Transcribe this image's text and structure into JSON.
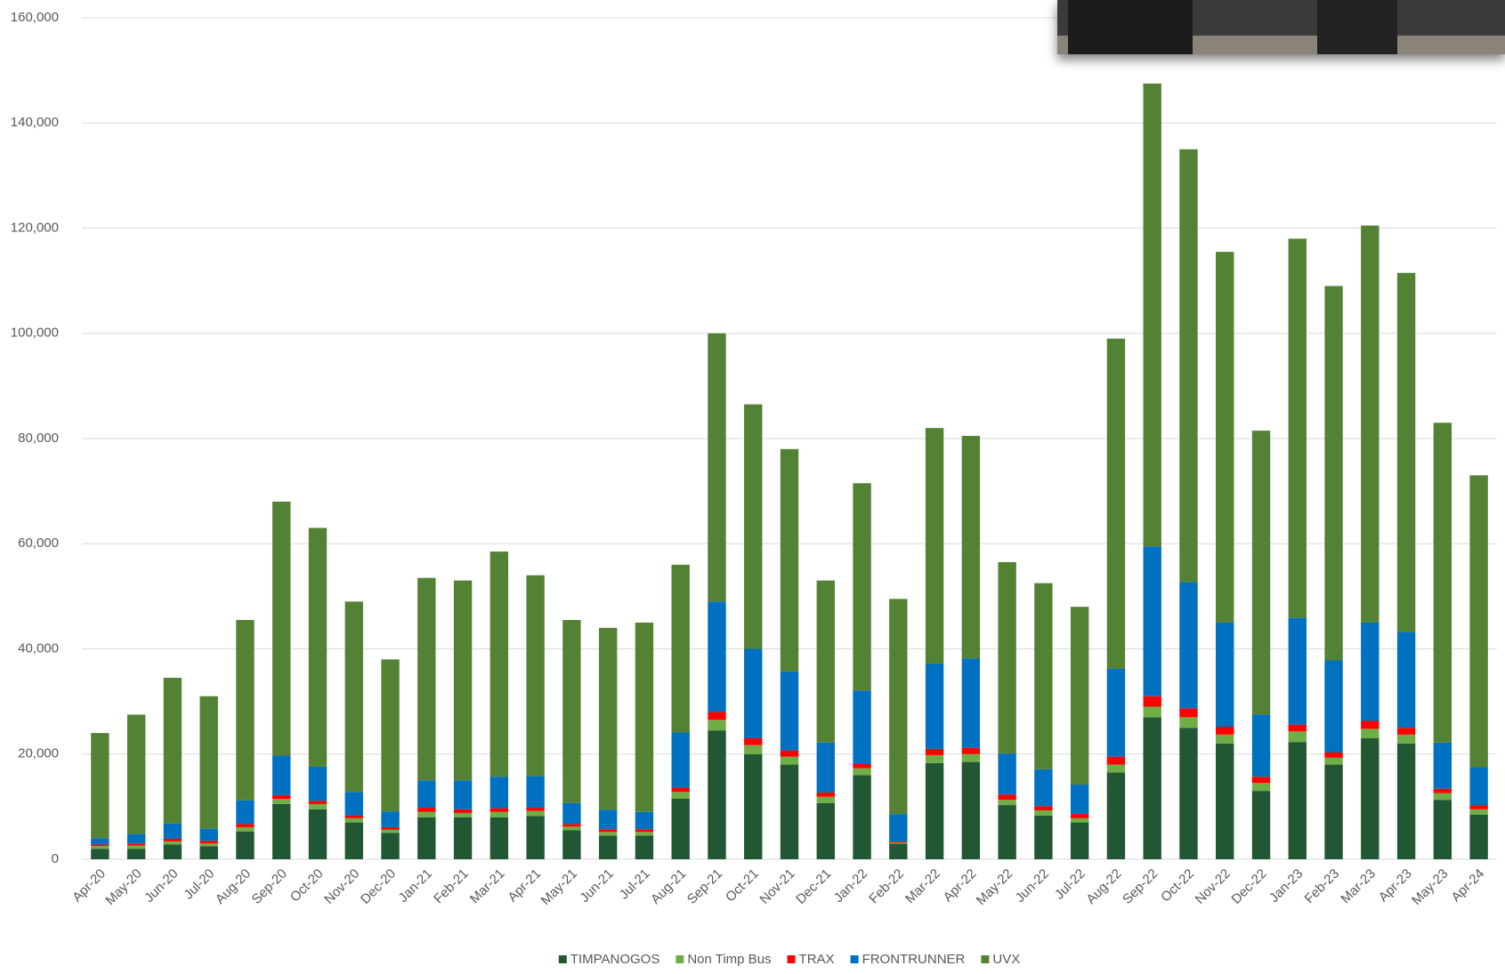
{
  "chart_data": {
    "type": "stacked_bar",
    "categories": [
      "Apr-20",
      "May-20",
      "Jun-20",
      "Jul-20",
      "Aug-20",
      "Sep-20",
      "Oct-20",
      "Nov-20",
      "Dec-20",
      "Jan-21",
      "Feb-21",
      "Mar-21",
      "Apr-21",
      "May-21",
      "Jun-21",
      "Jul-21",
      "Aug-21",
      "Sep-21",
      "Oct-21",
      "Nov-21",
      "Dec-21",
      "Jan-22",
      "Feb-22",
      "Mar-22",
      "Apr-22",
      "May-22",
      "Jun-22",
      "Jul-22",
      "Aug-22",
      "Sep-22",
      "Oct-22",
      "Nov-22",
      "Dec-22",
      "Jan-23",
      "Feb-23",
      "Mar-23",
      "Apr-23",
      "May-23",
      "Apr-24"
    ],
    "series": [
      {
        "name": "TIMPANOGOS",
        "color": "#215732",
        "values": [
          2000,
          2000,
          2800,
          2500,
          5300,
          10500,
          9500,
          7000,
          5000,
          8000,
          8000,
          8000,
          8200,
          5500,
          4500,
          4500,
          11500,
          24500,
          20000,
          18000,
          10700,
          16000,
          3000,
          18300,
          18500,
          10300,
          8300,
          7000,
          16500,
          27000,
          25000,
          22000,
          13000,
          22300,
          18000,
          23000,
          22000,
          11300,
          8500
        ]
      },
      {
        "name": "Non Timp Bus",
        "color": "#70ad47",
        "values": [
          500,
          600,
          600,
          500,
          800,
          1000,
          1000,
          800,
          600,
          1000,
          800,
          1000,
          1000,
          700,
          700,
          700,
          1300,
          2000,
          1700,
          1500,
          1200,
          1300,
          200,
          1500,
          1500,
          1000,
          1000,
          800,
          1500,
          2000,
          2000,
          1700,
          1500,
          2000,
          1300,
          1800,
          1700,
          1300,
          1000
        ]
      },
      {
        "name": "TRAX",
        "color": "#ff0000",
        "values": [
          300,
          400,
          500,
          500,
          600,
          700,
          600,
          500,
          500,
          800,
          700,
          700,
          600,
          500,
          500,
          500,
          800,
          1500,
          1300,
          1200,
          800,
          800,
          200,
          1200,
          1200,
          1000,
          800,
          800,
          1500,
          2000,
          1700,
          1500,
          1200,
          1300,
          1000,
          1500,
          1300,
          800,
          800
        ]
      },
      {
        "name": "FRONTRUNNER",
        "color": "#0070c0",
        "values": [
          1200,
          1800,
          2900,
          2300,
          4500,
          7500,
          6500,
          4500,
          3000,
          5200,
          5500,
          6000,
          6000,
          4000,
          3700,
          3300,
          10500,
          21000,
          17000,
          15000,
          9500,
          14000,
          5200,
          16200,
          17000,
          7800,
          7000,
          5600,
          16700,
          28500,
          24000,
          19800,
          11800,
          20300,
          17500,
          18700,
          18200,
          8800,
          7200
        ]
      },
      {
        "name": "UVX",
        "color": "#548235",
        "values": [
          20000,
          22700,
          27700,
          25200,
          34300,
          48300,
          45400,
          36200,
          28900,
          38500,
          38000,
          42800,
          38200,
          34800,
          34600,
          36000,
          31900,
          51000,
          46500,
          42300,
          30800,
          39400,
          40900,
          44800,
          42300,
          36400,
          35400,
          33800,
          62800,
          88000,
          82300,
          70500,
          54000,
          72100,
          71200,
          75500,
          68300,
          60800,
          55500
        ]
      }
    ],
    "ylim": [
      0,
      160000
    ],
    "yticks": [
      0,
      {
        "value": 20000,
        "label": "20,000"
      },
      {
        "value": 40000,
        "label": "40,000"
      },
      {
        "value": 60000,
        "label": "60,000"
      },
      {
        "value": 80000,
        "label": "80,000"
      },
      {
        "value": 100000,
        "label": "100,000"
      },
      {
        "value": 120000,
        "label": "120,000"
      },
      {
        "value": 140000,
        "label": "140,000"
      },
      {
        "value": 160000,
        "label": "160,000"
      }
    ],
    "grid": true,
    "legend": "bottom"
  }
}
